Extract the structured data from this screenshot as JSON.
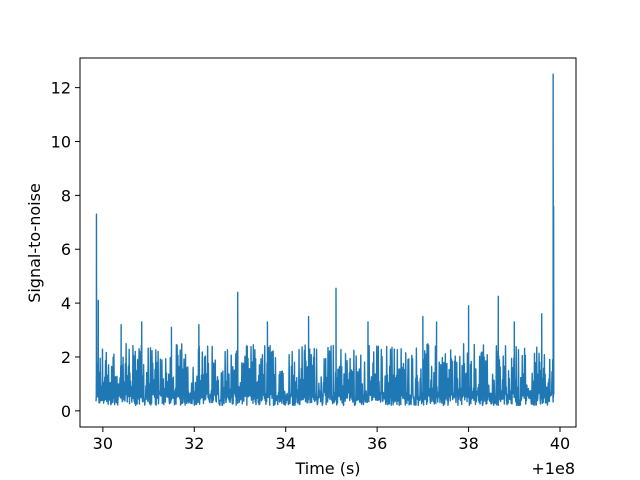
{
  "chart_data": {
    "type": "line",
    "title": "",
    "xlabel": "Time (s)",
    "ylabel": "Signal-to-noise",
    "x_offset_label": "+1e8",
    "xlim": [
      29.5,
      40.35
    ],
    "ylim": [
      -0.6,
      13.1
    ],
    "xticks": [
      30,
      32,
      34,
      36,
      38,
      40
    ],
    "xtick_labels": [
      "30",
      "32",
      "34",
      "36",
      "38",
      "40"
    ],
    "yticks": [
      0,
      2,
      4,
      6,
      8,
      10,
      12
    ],
    "ytick_labels": [
      "0",
      "2",
      "4",
      "6",
      "8",
      "10",
      "12"
    ],
    "grid": false,
    "colors": {
      "series": "#1f77b4",
      "axes": "#000000"
    },
    "series": [
      {
        "x_start": 29.85,
        "x_end": 39.85,
        "baseline_values": [
          0.2,
          2.5
        ],
        "peaks": [
          {
            "x": 29.86,
            "y": 7.3
          },
          {
            "x": 29.9,
            "y": 4.1
          },
          {
            "x": 30.4,
            "y": 3.2
          },
          {
            "x": 30.85,
            "y": 3.3
          },
          {
            "x": 31.5,
            "y": 3.1
          },
          {
            "x": 32.1,
            "y": 3.2
          },
          {
            "x": 32.95,
            "y": 4.4
          },
          {
            "x": 33.6,
            "y": 3.3
          },
          {
            "x": 34.5,
            "y": 3.5
          },
          {
            "x": 35.1,
            "y": 4.55
          },
          {
            "x": 35.8,
            "y": 3.3
          },
          {
            "x": 37.0,
            "y": 3.5
          },
          {
            "x": 37.3,
            "y": 3.3
          },
          {
            "x": 38.0,
            "y": 3.9
          },
          {
            "x": 38.65,
            "y": 4.25
          },
          {
            "x": 39.0,
            "y": 3.3
          },
          {
            "x": 39.6,
            "y": 3.6
          },
          {
            "x": 39.85,
            "y": 12.5
          },
          {
            "x": 39.86,
            "y": 7.6
          }
        ]
      }
    ]
  }
}
